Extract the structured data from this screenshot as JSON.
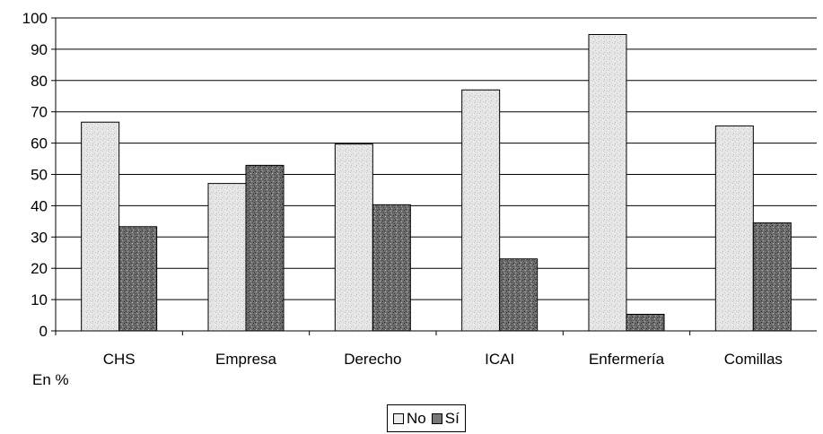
{
  "chart_data": {
    "type": "bar",
    "categories": [
      "CHS",
      "Empresa",
      "Derecho",
      "ICAI",
      "Enfermería",
      "Comillas"
    ],
    "series": [
      {
        "name": "No",
        "values": [
          66.7,
          47.1,
          59.7,
          77.0,
          94.7,
          65.5
        ],
        "color": "#e4e4e4"
      },
      {
        "name": "Sí",
        "values": [
          33.3,
          52.9,
          40.3,
          23.0,
          5.3,
          34.5
        ],
        "color": "#6f6f6f"
      }
    ],
    "ylim": [
      0,
      100
    ],
    "yticks": [
      0,
      10,
      20,
      30,
      40,
      50,
      60,
      70,
      80,
      90,
      100
    ],
    "grid": true,
    "unit_label": "En %",
    "legend_position": "bottom-center"
  }
}
